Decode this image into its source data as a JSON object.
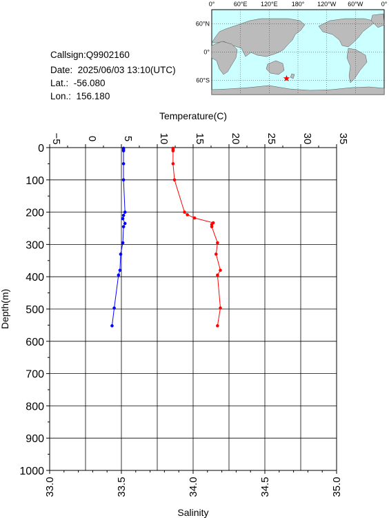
{
  "info": {
    "callsign": "Callsign:Q9902160",
    "date": "Date:  2025/06/03 13:10(UTC)",
    "lat": "Lat.:  -56.080",
    "lon": "Lon.:  156.180"
  },
  "map": {
    "lon_labels": [
      "0°",
      "60°E",
      "120°E",
      "180°",
      "120°W",
      "60°W",
      "0°"
    ],
    "lat_labels": [
      "60°N",
      "0°",
      "60°S"
    ],
    "ocean_color": "#ccffff",
    "land_color": "#bbbbbb",
    "marker": {
      "lon": 156.18,
      "lat": -56.08,
      "color": "#ff0000"
    }
  },
  "chart_data": {
    "type": "line",
    "ylabel": "Depth(m)",
    "top_axis_label": "Temperature(C)",
    "bottom_axis_label": "Salinity",
    "ylim": [
      1000,
      0
    ],
    "y_ticks": [
      "0",
      "100",
      "200",
      "300",
      "400",
      "500",
      "600",
      "700",
      "800",
      "900",
      "1000"
    ],
    "temperature_range": [
      -5,
      35
    ],
    "temperature_ticks": [
      "−5",
      "0",
      "5",
      "10",
      "15",
      "20",
      "25",
      "30",
      "35"
    ],
    "salinity_range": [
      33.0,
      35.0
    ],
    "salinity_ticks": [
      "33.0",
      "33.5",
      "34.0",
      "34.5",
      "35.0"
    ],
    "grid": true,
    "series": [
      {
        "axis": "top",
        "color": "#0000ff",
        "points": [
          {
            "value": 5.3,
            "depth": 2
          },
          {
            "value": 5.3,
            "depth": 6
          },
          {
            "value": 5.3,
            "depth": 10
          },
          {
            "value": 5.3,
            "depth": 50
          },
          {
            "value": 5.3,
            "depth": 100
          },
          {
            "value": 5.5,
            "depth": 200
          },
          {
            "value": 5.3,
            "depth": 210
          },
          {
            "value": 5.2,
            "depth": 220
          },
          {
            "value": 5.5,
            "depth": 235
          },
          {
            "value": 5.3,
            "depth": 245
          },
          {
            "value": 5.2,
            "depth": 295
          },
          {
            "value": 4.9,
            "depth": 330
          },
          {
            "value": 4.8,
            "depth": 380
          },
          {
            "value": 4.6,
            "depth": 395
          },
          {
            "value": 4.0,
            "depth": 497
          },
          {
            "value": 3.7,
            "depth": 552
          }
        ]
      },
      {
        "axis": "bottom",
        "color": "#ff0000",
        "points": [
          {
            "value": 33.86,
            "depth": 2
          },
          {
            "value": 33.86,
            "depth": 6
          },
          {
            "value": 33.86,
            "depth": 10
          },
          {
            "value": 33.86,
            "depth": 50
          },
          {
            "value": 33.87,
            "depth": 100
          },
          {
            "value": 33.94,
            "depth": 200
          },
          {
            "value": 33.96,
            "depth": 208
          },
          {
            "value": 34.01,
            "depth": 218
          },
          {
            "value": 34.14,
            "depth": 233
          },
          {
            "value": 34.13,
            "depth": 238
          },
          {
            "value": 34.13,
            "depth": 245
          },
          {
            "value": 34.17,
            "depth": 295
          },
          {
            "value": 34.16,
            "depth": 330
          },
          {
            "value": 34.19,
            "depth": 380
          },
          {
            "value": 34.17,
            "depth": 395
          },
          {
            "value": 34.19,
            "depth": 497
          },
          {
            "value": 34.17,
            "depth": 552
          }
        ]
      }
    ]
  }
}
